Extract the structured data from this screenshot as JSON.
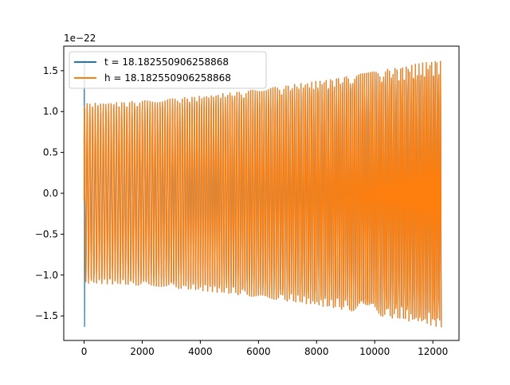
{
  "chart_data": {
    "type": "line",
    "title": "",
    "xlabel": "",
    "ylabel": "",
    "xlim": [
      -700,
      12900
    ],
    "ylim": [
      -1.8,
      1.8
    ],
    "y_offset_label": "1e−22",
    "x_ticks": [
      0,
      2000,
      4000,
      6000,
      8000,
      10000,
      12000
    ],
    "x_tick_labels": [
      "0",
      "2000",
      "4000",
      "6000",
      "8000",
      "10000",
      "12000"
    ],
    "y_ticks": [
      -1.5,
      -1.0,
      -0.5,
      0.0,
      0.5,
      1.0,
      1.5
    ],
    "y_tick_labels": [
      "−1.5",
      "−1.0",
      "−0.5",
      "0.0",
      "0.5",
      "1.0",
      "1.5"
    ],
    "grid": false,
    "legend_position": "top-left",
    "series": [
      {
        "name": "t = 18.182550906258868",
        "color": "#1f77b4",
        "x_range": [
          0,
          12300
        ],
        "amplitude_start": 1.1,
        "amplitude_end": 1.64,
        "startup_spike": 1.63
      },
      {
        "name": "h = 18.182550906258868",
        "color": "#ff7f0e",
        "x_range": [
          0,
          12300
        ],
        "amplitude_start": 1.1,
        "amplitude_end": 1.64
      }
    ]
  }
}
